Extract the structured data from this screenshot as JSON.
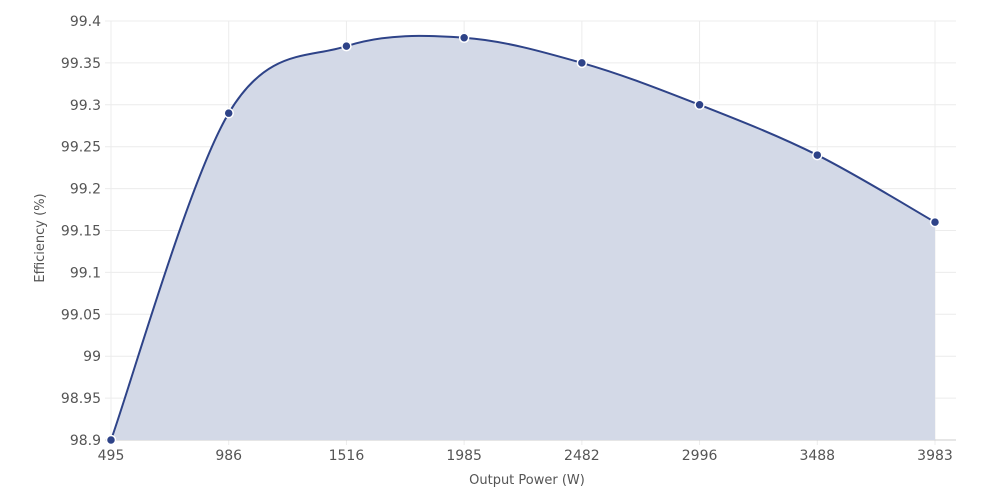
{
  "chart_data": {
    "type": "area",
    "title": "",
    "xlabel": "Output Power (W)",
    "ylabel": "Efficiency (%)",
    "categories": [
      "495",
      "986",
      "1516",
      "1985",
      "2482",
      "2996",
      "3488",
      "3983"
    ],
    "x": [
      495,
      986,
      1516,
      1985,
      2482,
      2996,
      3488,
      3983
    ],
    "series": [
      {
        "values": [
          98.9,
          99.29,
          99.37,
          99.38,
          99.35,
          99.3,
          99.24,
          99.16
        ]
      }
    ],
    "ylim": [
      98.9,
      99.4
    ],
    "yticks": [
      "98.9",
      "98.95",
      "99",
      "99.05",
      "99.1",
      "99.15",
      "99.2",
      "99.25",
      "99.3",
      "99.35",
      "99.4"
    ],
    "grid": true,
    "legend": "none",
    "colors": {
      "line": "#2e4388",
      "fill": "#d3d9e7",
      "grid": "#ececec"
    }
  }
}
